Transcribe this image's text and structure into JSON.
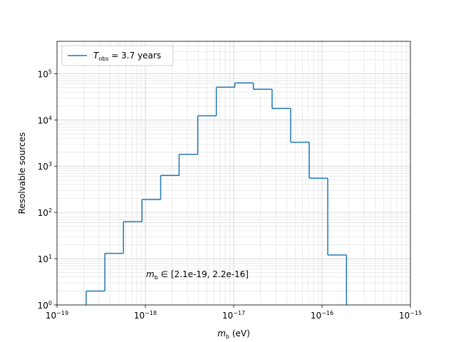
{
  "chart_data": {
    "type": "histogram",
    "xlabel": "m_{b} (eV)",
    "ylabel": "Resolvable sources",
    "annotation": "m_{b} ∈ [2.1e-19, 2.2e-16]",
    "xscale": "log",
    "yscale": "log",
    "grid": true,
    "legend_loc": "upper left",
    "xlim": [
      1e-19,
      1e-15
    ],
    "ylim": [
      1,
      500000
    ],
    "xticks": [
      {
        "value": 1e-19,
        "label": "10^{−19}"
      },
      {
        "value": 1e-18,
        "label": "10^{−18}"
      },
      {
        "value": 1e-17,
        "label": "10^{−17}"
      },
      {
        "value": 1e-16,
        "label": "10^{−16}"
      },
      {
        "value": 1e-15,
        "label": "10^{−15}"
      }
    ],
    "yticks": [
      {
        "value": 1,
        "label": "10^{0}"
      },
      {
        "value": 10,
        "label": "10^{1}"
      },
      {
        "value": 100,
        "label": "10^{2}"
      },
      {
        "value": 1000,
        "label": "10^{3}"
      },
      {
        "value": 10000,
        "label": "10^{4}"
      },
      {
        "value": 100000,
        "label": "10^{5}"
      }
    ],
    "series": [
      {
        "name": "T_{obs} = 3.7 years",
        "color": "#1f77b4",
        "bins": [
          2.14e-19,
          3.48e-19,
          5.65e-19,
          9.16e-19,
          1.49e-18,
          2.41e-18,
          3.92e-18,
          6.36e-18,
          1.03e-17,
          1.67e-17,
          2.72e-17,
          4.41e-17,
          7.16e-17,
          1.16e-16,
          1.89e-16
        ],
        "values": [
          2,
          13,
          63,
          190,
          630,
          1800,
          12300,
          51000,
          63000,
          46000,
          17700,
          3300,
          550,
          12
        ]
      }
    ]
  }
}
